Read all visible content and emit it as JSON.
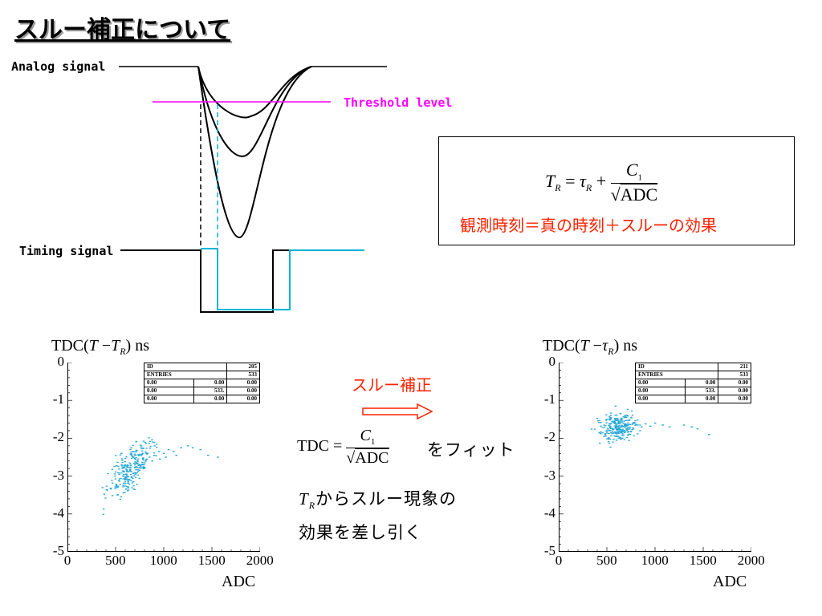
{
  "title": "スルー補正について",
  "signal_diagram": {
    "analog_label": "Analog signal",
    "threshold_label": "Threshold level",
    "timing_label": "Timing signal",
    "colors": {
      "black": "#000000",
      "threshold": "#ff00ff",
      "corrected": "#00b4d8"
    }
  },
  "formula_box": {
    "lhs_var": "T",
    "lhs_sub": "R",
    "equals": "=",
    "tau": "τ",
    "tau_sub": "R",
    "plus": "+",
    "numerator": "C",
    "numerator_sub": "1",
    "denominator": "ADC",
    "caption": "観測時刻＝真の時刻＋スルーの効果"
  },
  "middle": {
    "correction_label": "スルー補正",
    "fit_lhs": "TDC",
    "fit_equals": "=",
    "fit_numerator": "C",
    "fit_numerator_sub": "1",
    "fit_denominator": "ADC",
    "fit_suffix": "をフィット",
    "line2_var": "T",
    "line2_sub": "R",
    "line2_text": "からスルー現象の",
    "line3_text": "効果を差し引く"
  },
  "chart_data": [
    {
      "type": "scatter",
      "ylabel_prefix": "TDC(",
      "ylabel_var": "T",
      "ylabel_minus": "−",
      "ylabel_var2": "T",
      "ylabel_sub": "R",
      "ylabel_suffix": ") ns",
      "xlabel": "ADC",
      "xlim": [
        0,
        2000
      ],
      "ylim": [
        -5,
        0
      ],
      "xticks": [
        "0",
        "500",
        "1000",
        "1500",
        "2000"
      ],
      "yticks": [
        "0",
        "-1",
        "-2",
        "-3",
        "-4",
        "-5"
      ],
      "color": "#29a8d6",
      "stats": {
        "rows": [
          [
            "ID",
            "",
            "205"
          ],
          [
            "ENTRIES",
            "",
            "533"
          ],
          [
            "0.00",
            "0.00",
            "0.00"
          ],
          [
            "0.00",
            "533.",
            "0.00"
          ],
          [
            "0.00",
            "0.00",
            "0.00"
          ]
        ]
      },
      "cluster": {
        "x_center": 640,
        "y_center": -2.85,
        "x_spread": 110,
        "y_spread": 0.28,
        "slope": 0.0022,
        "n": 260
      },
      "points": [
        [
          700,
          -2.45
        ],
        [
          780,
          -2.4
        ],
        [
          850,
          -2.5
        ],
        [
          900,
          -2.45
        ],
        [
          950,
          -2.35
        ],
        [
          1000,
          -2.4
        ],
        [
          1050,
          -2.3
        ],
        [
          1100,
          -2.35
        ],
        [
          1180,
          -2.25
        ],
        [
          1250,
          -2.2
        ],
        [
          1300,
          -2.25
        ],
        [
          1380,
          -2.3
        ],
        [
          1460,
          -2.45
        ],
        [
          1560,
          -2.5
        ],
        [
          820,
          -2.55
        ],
        [
          880,
          -2.6
        ],
        [
          960,
          -2.55
        ],
        [
          1020,
          -2.5
        ],
        [
          560,
          -2.4
        ],
        [
          600,
          -3.2
        ],
        [
          520,
          -3.3
        ],
        [
          580,
          -3.25
        ],
        [
          740,
          -2.7
        ],
        [
          800,
          -2.65
        ],
        [
          680,
          -2.35
        ],
        [
          1130,
          -2.45
        ]
      ]
    },
    {
      "type": "scatter",
      "ylabel_prefix": "TDC(",
      "ylabel_var": "T",
      "ylabel_minus": "−",
      "ylabel_var2": "τ",
      "ylabel_sub": "R",
      "ylabel_suffix": ") ns",
      "xlabel": "ADC",
      "xlim": [
        0,
        2000
      ],
      "ylim": [
        -5,
        0
      ],
      "xticks": [
        "0",
        "500",
        "1000",
        "1500",
        "2000"
      ],
      "yticks": [
        "0",
        "-1",
        "-2",
        "-3",
        "-4",
        "-5"
      ],
      "color": "#29a8d6",
      "stats": {
        "rows": [
          [
            "ID",
            "",
            "211"
          ],
          [
            "ENTRIES",
            "",
            "533"
          ],
          [
            "0.00",
            "0.00",
            "0.00"
          ],
          [
            "0.00",
            "533.",
            "0.00"
          ],
          [
            "0.00",
            "0.00",
            "0.00"
          ]
        ]
      },
      "cluster": {
        "x_center": 620,
        "y_center": -1.7,
        "x_spread": 90,
        "y_spread": 0.17,
        "slope": 0.0,
        "n": 260
      },
      "points": [
        [
          780,
          -1.6
        ],
        [
          820,
          -1.65
        ],
        [
          860,
          -1.7
        ],
        [
          900,
          -1.62
        ],
        [
          950,
          -1.68
        ],
        [
          1000,
          -1.6
        ],
        [
          1080,
          -1.65
        ],
        [
          1150,
          -1.7
        ],
        [
          1300,
          -1.65
        ],
        [
          1380,
          -1.7
        ],
        [
          1440,
          -1.75
        ],
        [
          1560,
          -1.9
        ],
        [
          590,
          -1.15
        ],
        [
          640,
          -1.35
        ],
        [
          700,
          -1.45
        ],
        [
          740,
          -1.9
        ],
        [
          600,
          -2.05
        ],
        [
          660,
          -2.0
        ]
      ]
    }
  ]
}
